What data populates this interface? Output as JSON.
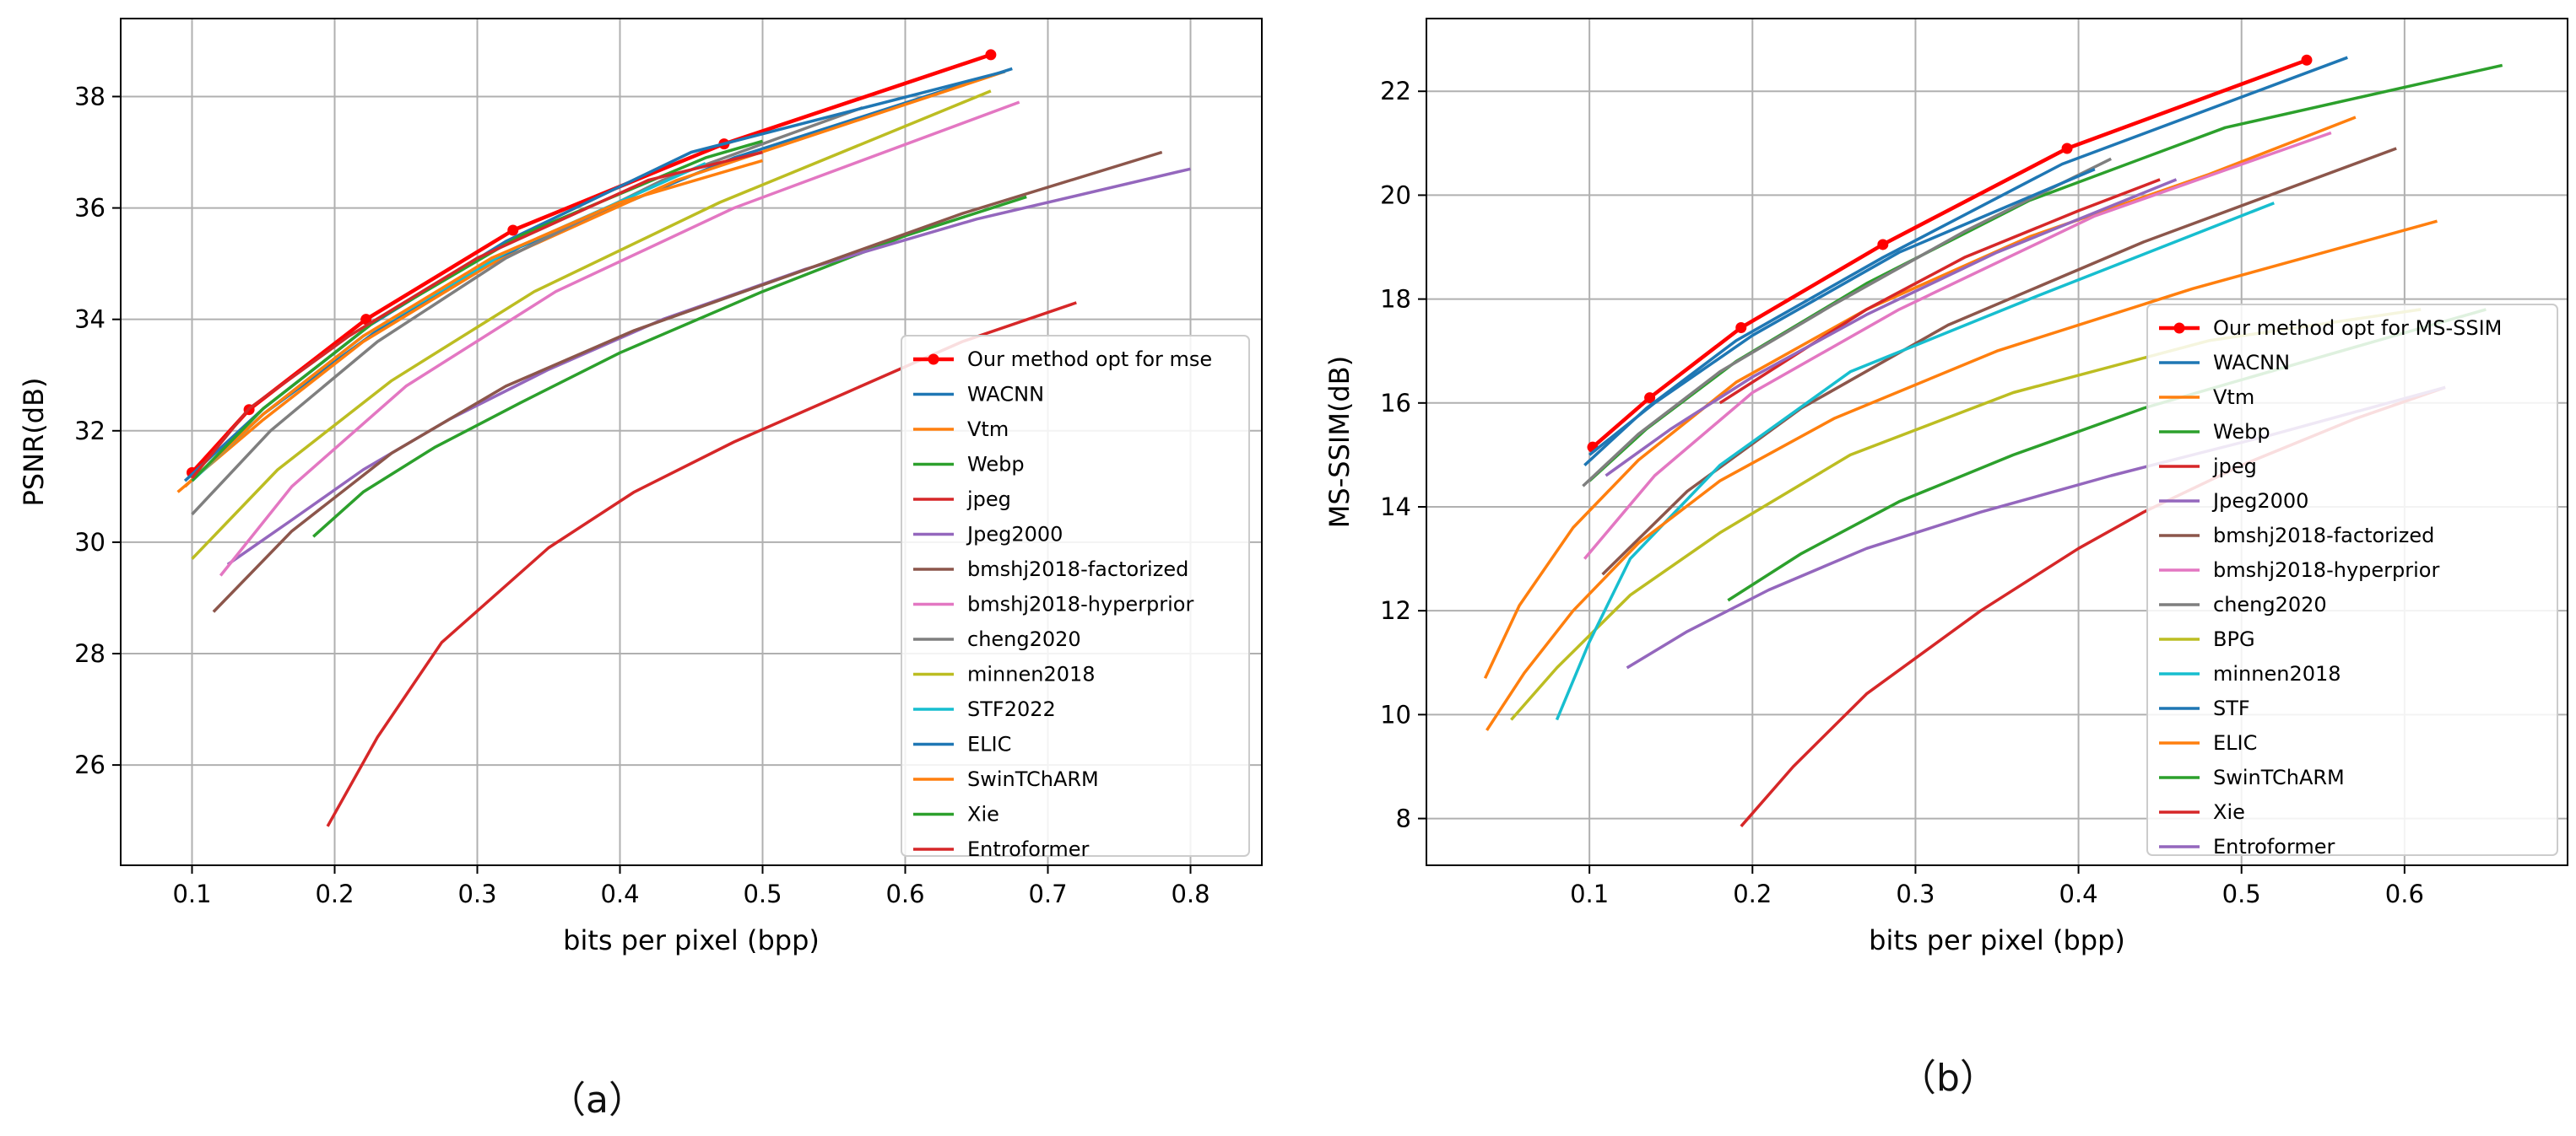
{
  "colors": {
    "red": "#d62728",
    "blue": "#1f77b4",
    "orange": "#ff7f0e",
    "green": "#2ca02c",
    "purple": "#9467bd",
    "brown": "#8c564b",
    "pink": "#e377c2",
    "gray": "#7f7f7f",
    "olive": "#bcbd22",
    "cyan": "#17becf",
    "ours": "#ff0000"
  },
  "captions": {
    "a": "（a）",
    "b": "（b）"
  },
  "chart_data": [
    {
      "id": "a",
      "type": "line",
      "xlabel": "bits per pixel (bpp)",
      "ylabel": "PSNR(dB)",
      "xlim": [
        0.05,
        0.85
      ],
      "ylim": [
        24.2,
        39.4
      ],
      "xticks": [
        0.1,
        0.2,
        0.3,
        0.4,
        0.5,
        0.6,
        0.7,
        0.8
      ],
      "xtick_labels": [
        "0.1",
        "0.2",
        "0.3",
        "0.4",
        "0.5",
        "0.6",
        "0.7",
        "0.8"
      ],
      "yticks": [
        26,
        28,
        30,
        32,
        34,
        36,
        38
      ],
      "ytick_labels": [
        "26",
        "28",
        "30",
        "32",
        "34",
        "36",
        "38"
      ],
      "grid": true,
      "legend_position": "lower-right",
      "series": [
        {
          "name": "Our method opt for mse",
          "color": "ours",
          "marker": true,
          "x": [
            0.1,
            0.14,
            0.222,
            0.325,
            0.473,
            0.66
          ],
          "y": [
            31.25,
            32.38,
            34.0,
            35.6,
            37.15,
            38.75
          ]
        },
        {
          "name": "WACNN",
          "color": "blue",
          "x": [
            0.095,
            0.15,
            0.23,
            0.33,
            0.48,
            0.675
          ],
          "y": [
            31.0,
            32.3,
            33.8,
            35.3,
            36.9,
            38.5
          ]
        },
        {
          "name": "Vtm",
          "color": "orange",
          "x": [
            0.09,
            0.15,
            0.22,
            0.31,
            0.44,
            0.67
          ],
          "y": [
            30.9,
            32.2,
            33.6,
            35.0,
            36.5,
            38.45
          ]
        },
        {
          "name": "Webp",
          "color": "green",
          "x": [
            0.185,
            0.22,
            0.27,
            0.33,
            0.4,
            0.5,
            0.6,
            0.685
          ],
          "y": [
            30.1,
            30.9,
            31.7,
            32.5,
            33.4,
            34.5,
            35.5,
            36.2
          ]
        },
        {
          "name": "jpeg",
          "color": "red",
          "x": [
            0.195,
            0.23,
            0.275,
            0.35,
            0.41,
            0.48,
            0.56,
            0.64,
            0.72
          ],
          "y": [
            24.9,
            26.5,
            28.2,
            29.9,
            30.9,
            31.8,
            32.7,
            33.6,
            34.3
          ]
        },
        {
          "name": "Jpeg2000",
          "color": "purple",
          "x": [
            0.125,
            0.17,
            0.22,
            0.28,
            0.35,
            0.43,
            0.53,
            0.65,
            0.8
          ],
          "y": [
            29.6,
            30.4,
            31.3,
            32.2,
            33.1,
            34.0,
            34.9,
            35.8,
            36.7
          ]
        },
        {
          "name": "bmshj2018-factorized",
          "color": "brown",
          "x": [
            0.115,
            0.17,
            0.24,
            0.32,
            0.41,
            0.52,
            0.64,
            0.78
          ],
          "y": [
            28.75,
            30.2,
            31.6,
            32.8,
            33.8,
            34.8,
            35.9,
            37.0
          ]
        },
        {
          "name": "bmshj2018-hyperprior",
          "color": "pink",
          "x": [
            0.12,
            0.17,
            0.25,
            0.355,
            0.48,
            0.68
          ],
          "y": [
            29.4,
            31.0,
            32.8,
            34.5,
            36.0,
            37.9
          ]
        },
        {
          "name": "cheng2020",
          "color": "gray",
          "x": [
            0.1,
            0.155,
            0.23,
            0.32,
            0.43,
            0.57
          ],
          "y": [
            30.5,
            32.0,
            33.6,
            35.1,
            36.5,
            37.8
          ]
        },
        {
          "name": "minnen2018",
          "color": "olive",
          "x": [
            0.1,
            0.16,
            0.24,
            0.34,
            0.47,
            0.66
          ],
          "y": [
            29.7,
            31.3,
            32.9,
            34.5,
            36.1,
            38.1
          ]
        },
        {
          "name": "STF2022",
          "color": "cyan",
          "x": [
            0.1,
            0.15,
            0.22,
            0.32,
            0.46
          ],
          "y": [
            31.1,
            32.3,
            33.7,
            35.2,
            36.8
          ]
        },
        {
          "name": "ELIC",
          "color": "blue",
          "x": [
            0.095,
            0.15,
            0.225,
            0.32,
            0.45,
            0.67
          ],
          "y": [
            31.1,
            32.4,
            33.9,
            35.4,
            37.0,
            38.45
          ]
        },
        {
          "name": "SwinTChARM",
          "color": "orange",
          "x": [
            0.095,
            0.15,
            0.22,
            0.31,
            0.4,
            0.5
          ],
          "y": [
            31.0,
            32.3,
            33.7,
            35.1,
            36.1,
            36.85
          ]
        },
        {
          "name": "Xie",
          "color": "green",
          "x": [
            0.1,
            0.15,
            0.23,
            0.33,
            0.46,
            0.5
          ],
          "y": [
            31.1,
            32.4,
            34.0,
            35.5,
            36.9,
            37.2
          ]
        },
        {
          "name": "Entroformer",
          "color": "red",
          "x": [
            0.1,
            0.14,
            0.21,
            0.3,
            0.42,
            0.5
          ],
          "y": [
            31.15,
            32.4,
            33.7,
            35.1,
            36.5,
            37.0
          ]
        }
      ]
    },
    {
      "id": "b",
      "type": "line",
      "xlabel": "bits per pixel (bpp)",
      "ylabel": "MS-SSIM(dB)",
      "xlim": [
        0.0,
        0.7
      ],
      "ylim": [
        7.1,
        23.4
      ],
      "xticks": [
        0.1,
        0.2,
        0.3,
        0.4,
        0.5,
        0.6
      ],
      "xtick_labels": [
        "0.1",
        "0.2",
        "0.3",
        "0.4",
        "0.5",
        "0.6"
      ],
      "yticks": [
        8,
        10,
        12,
        14,
        16,
        18,
        20,
        22
      ],
      "ytick_labels": [
        "8",
        "10",
        "12",
        "14",
        "16",
        "18",
        "20",
        "22"
      ],
      "grid": true,
      "legend_position": "lower-right",
      "series": [
        {
          "name": "Our method opt for MS-SSIM",
          "color": "ours",
          "marker": true,
          "x": [
            0.102,
            0.137,
            0.193,
            0.28,
            0.393,
            0.54
          ],
          "y": [
            15.15,
            16.1,
            17.45,
            19.05,
            20.9,
            22.6
          ]
        },
        {
          "name": "WACNN",
          "color": "blue",
          "x": [
            0.097,
            0.135,
            0.19,
            0.28,
            0.39,
            0.565
          ],
          "y": [
            14.8,
            15.9,
            17.2,
            18.8,
            20.6,
            22.65
          ]
        },
        {
          "name": "Vtm",
          "color": "orange",
          "x": [
            0.036,
            0.057,
            0.09,
            0.13,
            0.19,
            0.27,
            0.37,
            0.48,
            0.57
          ],
          "y": [
            10.7,
            12.1,
            13.6,
            14.9,
            16.4,
            17.8,
            19.2,
            20.4,
            21.5
          ]
        },
        {
          "name": "Webp",
          "color": "green",
          "x": [
            0.1,
            0.135,
            0.19,
            0.27,
            0.37,
            0.49,
            0.66
          ],
          "y": [
            14.5,
            15.5,
            16.8,
            18.3,
            19.9,
            21.3,
            22.5
          ]
        },
        {
          "name": "jpeg",
          "color": "red",
          "x": [
            0.18,
            0.22,
            0.27,
            0.33,
            0.4,
            0.45
          ],
          "y": [
            16.0,
            16.8,
            17.8,
            18.8,
            19.7,
            20.3
          ]
        },
        {
          "name": "Jpeg2000",
          "color": "purple",
          "x": [
            0.11,
            0.15,
            0.2,
            0.27,
            0.35,
            0.46
          ],
          "y": [
            14.6,
            15.5,
            16.5,
            17.7,
            18.9,
            20.3
          ]
        },
        {
          "name": "bmshj2018-factorized",
          "color": "brown",
          "x": [
            0.108,
            0.16,
            0.23,
            0.32,
            0.44,
            0.595
          ],
          "y": [
            12.7,
            14.3,
            15.9,
            17.5,
            19.1,
            20.9
          ]
        },
        {
          "name": "bmshj2018-hyperprior",
          "color": "pink",
          "x": [
            0.097,
            0.14,
            0.2,
            0.29,
            0.41,
            0.555
          ],
          "y": [
            13.0,
            14.6,
            16.2,
            17.8,
            19.6,
            21.2
          ]
        },
        {
          "name": "cheng2020",
          "color": "gray",
          "x": [
            0.096,
            0.13,
            0.18,
            0.25,
            0.33,
            0.42
          ],
          "y": [
            14.4,
            15.4,
            16.6,
            17.9,
            19.3,
            20.7
          ]
        },
        {
          "name": "BPG",
          "color": "olive",
          "x": [
            0.052,
            0.08,
            0.125,
            0.18,
            0.26,
            0.36,
            0.48,
            0.61
          ],
          "y": [
            9.9,
            10.9,
            12.3,
            13.5,
            15.0,
            16.2,
            17.2,
            17.8
          ]
        },
        {
          "name": "minnen2018",
          "color": "cyan",
          "x": [
            0.08,
            0.1,
            0.125,
            0.18,
            0.26,
            0.37,
            0.52
          ],
          "y": [
            9.9,
            11.4,
            13.0,
            14.8,
            16.6,
            18.0,
            19.85
          ]
        },
        {
          "name": "STF",
          "color": "blue",
          "x": [
            0.1,
            0.14,
            0.2,
            0.29,
            0.41
          ],
          "y": [
            15.0,
            16.0,
            17.3,
            18.9,
            20.5
          ]
        },
        {
          "name": "ELIC",
          "color": "orange",
          "x": [
            0.037,
            0.06,
            0.09,
            0.13,
            0.18,
            0.25,
            0.35,
            0.47,
            0.62
          ],
          "y": [
            9.7,
            10.8,
            12.0,
            13.3,
            14.5,
            15.7,
            17.0,
            18.2,
            19.5
          ]
        },
        {
          "name": "SwinTChARM",
          "color": "green",
          "x": [
            0.185,
            0.23,
            0.29,
            0.36,
            0.44,
            0.55,
            0.65
          ],
          "y": [
            12.2,
            13.1,
            14.1,
            15.0,
            15.9,
            16.9,
            17.8
          ]
        },
        {
          "name": "Xie",
          "color": "red",
          "x": [
            0.193,
            0.225,
            0.27,
            0.34,
            0.4,
            0.44,
            0.5,
            0.57,
            0.625
          ],
          "y": [
            7.85,
            9.0,
            10.4,
            12.0,
            13.2,
            13.9,
            14.8,
            15.7,
            16.3
          ]
        },
        {
          "name": "Entroformer",
          "color": "purple",
          "x": [
            0.123,
            0.16,
            0.21,
            0.27,
            0.34,
            0.42,
            0.52,
            0.625
          ],
          "y": [
            10.9,
            11.6,
            12.4,
            13.2,
            13.9,
            14.6,
            15.4,
            16.3
          ]
        }
      ]
    }
  ]
}
